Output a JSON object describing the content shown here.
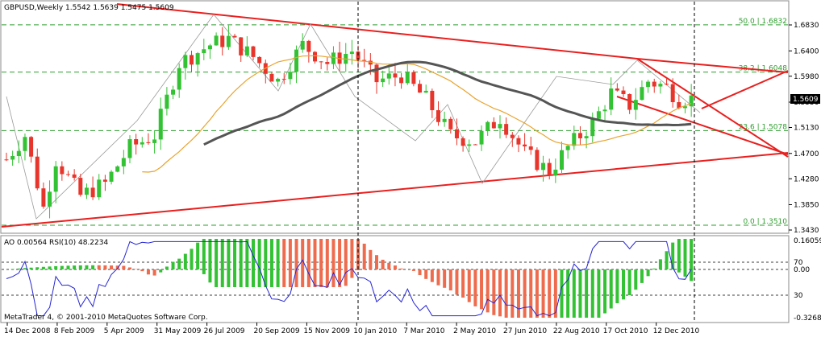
{
  "window": {
    "symbol_header": "GBPUSD,Weekly  1.5542 1.5639 1.5475 1.5609",
    "indicator_header": "AO 0.00564  RSI(10) 48.2234",
    "copyright": "MetaTrader 4, © 2001-2010 MetaQuotes Software Corp.",
    "current_price": "1.5609"
  },
  "colors": {
    "bull": "#33c233",
    "bear": "#e8352c",
    "ao_up": "#33c233",
    "ao_down": "#ee6b4d",
    "trendline": "#e8201f",
    "fib": "#2e9e2e",
    "ma_fast": "#e8a42f",
    "ma_slow": "#555555",
    "rsi": "#2525d4"
  },
  "price_axis": [
    "1.6830",
    "1.6400",
    "1.5980",
    "1.5550",
    "1.5130",
    "1.4700",
    "1.4280",
    "1.3850",
    "1.3430"
  ],
  "indicator_axis": {
    "top": "0.16059",
    "bottom": "-0.32684",
    "level_70": "70",
    "level_30": "30",
    "level_0": "0.00"
  },
  "time_axis": [
    "14 Dec 2008",
    "8 Feb 2009",
    "5 Apr 2009",
    "31 May 2009",
    "26 Jul 2009",
    "20 Sep 2009",
    "15 Nov 2009",
    "10 Jan 2010",
    "7 Mar 2010",
    "2 May 2010",
    "27 Jun 2010",
    "22 Aug 2010",
    "17 Oct 2010",
    "12 Dec 2010"
  ],
  "fib_levels": [
    {
      "label": "50.0 | 1.6832",
      "price": 1.6832
    },
    {
      "label": "38.2 | 1.6048",
      "price": 1.6048
    },
    {
      "label": "23.6 | 1.5078",
      "price": 1.5078
    },
    {
      "label": "0.0 | 1.3510",
      "price": 1.351
    }
  ]
}
